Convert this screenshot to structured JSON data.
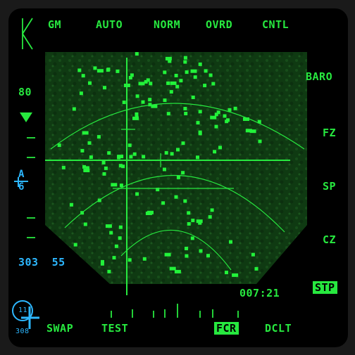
{
  "top_osb": {
    "gm": "GM",
    "auto": "AUTO",
    "norm": "NORM",
    "ovrd": "OVRD",
    "cntl": "CNTL"
  },
  "right_osb": {
    "baro": "BARO",
    "fz": "FZ",
    "sp": "SP",
    "cz": "CZ",
    "stp": "STP"
  },
  "bottom_osb": {
    "swap": "SWAP",
    "test": "TEST",
    "fcr": "FCR",
    "dclt": "DCLT"
  },
  "left_scale": {
    "range_value": "80",
    "azimuth_letter": "A",
    "azimuth_number": "6"
  },
  "readouts": {
    "bearing_range": "303  55",
    "time": "007:21",
    "hsi_heading": "11",
    "hsi_bearing": "308"
  },
  "colors": {
    "symbology": "#27e83f",
    "cyan": "#2db7ff",
    "radar_bg": "#0f3a12"
  },
  "icons": {
    "range_marker": "triangle-down-icon",
    "cursor": "crosshair-icon",
    "ownship": "aircraft-icon"
  }
}
